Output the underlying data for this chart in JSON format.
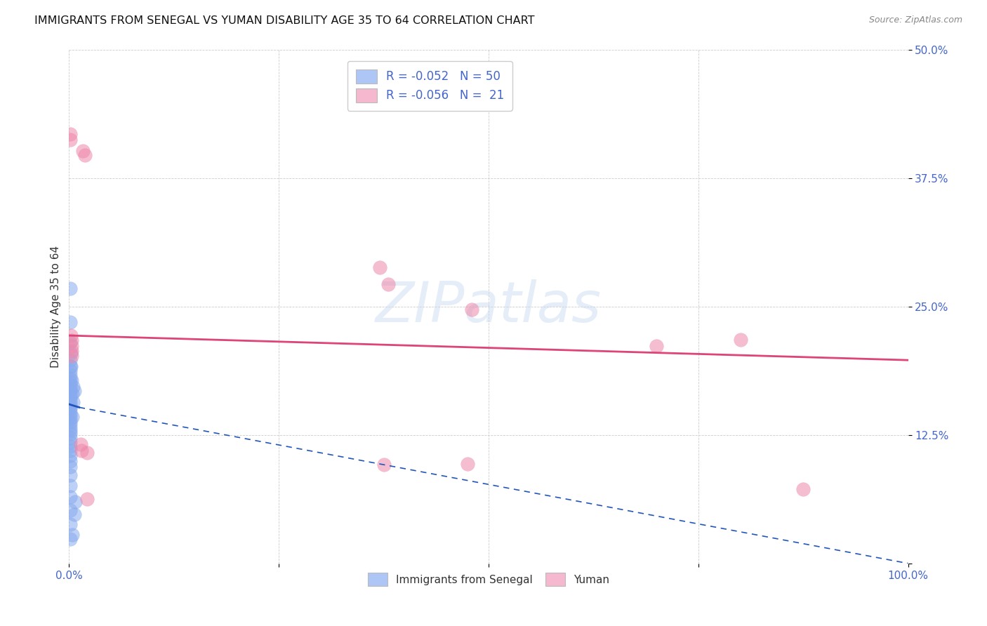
{
  "title": "IMMIGRANTS FROM SENEGAL VS YUMAN DISABILITY AGE 35 TO 64 CORRELATION CHART",
  "source": "Source: ZipAtlas.com",
  "ylabel": "Disability Age 35 to 64",
  "xlim": [
    0,
    1.0
  ],
  "ylim": [
    0,
    0.5
  ],
  "ytick_vals": [
    0.0,
    0.125,
    0.25,
    0.375,
    0.5
  ],
  "ytick_labels": [
    "",
    "12.5%",
    "25.0%",
    "37.5%",
    "50.0%"
  ],
  "xtick_vals": [
    0.0,
    0.25,
    0.5,
    0.75,
    1.0
  ],
  "xtick_labels": [
    "0.0%",
    "",
    "",
    "",
    "100.0%"
  ],
  "legend_top": [
    {
      "label": "R = -0.052   N = 50",
      "facecolor": "#aec6f5"
    },
    {
      "label": "R = -0.056   N =  21",
      "facecolor": "#f5b8ce"
    }
  ],
  "legend_bottom": [
    "Immigrants from Senegal",
    "Yuman"
  ],
  "legend_bottom_colors": [
    "#aec6f5",
    "#f5b8ce"
  ],
  "watermark": "ZIPatlas",
  "background_color": "#ffffff",
  "grid_color": "#cccccc",
  "title_fontsize": 11.5,
  "source_fontsize": 9,
  "axis_label_fontsize": 11,
  "tick_color": "#4466cc",
  "tick_fontsize": 11,
  "blue_scatter_color": "#88aaee",
  "pink_scatter_color": "#ee88aa",
  "blue_scatter": [
    [
      0.001,
      0.268
    ],
    [
      0.001,
      0.235
    ],
    [
      0.001,
      0.215
    ],
    [
      0.001,
      0.198
    ],
    [
      0.001,
      0.192
    ],
    [
      0.001,
      0.188
    ],
    [
      0.001,
      0.184
    ],
    [
      0.001,
      0.18
    ],
    [
      0.001,
      0.177
    ],
    [
      0.001,
      0.174
    ],
    [
      0.001,
      0.17
    ],
    [
      0.001,
      0.167
    ],
    [
      0.001,
      0.164
    ],
    [
      0.001,
      0.161
    ],
    [
      0.001,
      0.158
    ],
    [
      0.001,
      0.155
    ],
    [
      0.001,
      0.152
    ],
    [
      0.001,
      0.15
    ],
    [
      0.001,
      0.147
    ],
    [
      0.001,
      0.144
    ],
    [
      0.001,
      0.141
    ],
    [
      0.001,
      0.138
    ],
    [
      0.001,
      0.135
    ],
    [
      0.001,
      0.132
    ],
    [
      0.001,
      0.129
    ],
    [
      0.001,
      0.126
    ],
    [
      0.001,
      0.122
    ],
    [
      0.001,
      0.118
    ],
    [
      0.001,
      0.114
    ],
    [
      0.001,
      0.11
    ],
    [
      0.001,
      0.105
    ],
    [
      0.001,
      0.1
    ],
    [
      0.001,
      0.094
    ],
    [
      0.001,
      0.086
    ],
    [
      0.001,
      0.076
    ],
    [
      0.001,
      0.065
    ],
    [
      0.001,
      0.052
    ],
    [
      0.001,
      0.038
    ],
    [
      0.001,
      0.024
    ],
    [
      0.002,
      0.192
    ],
    [
      0.002,
      0.205
    ],
    [
      0.003,
      0.178
    ],
    [
      0.004,
      0.165
    ],
    [
      0.004,
      0.143
    ],
    [
      0.005,
      0.172
    ],
    [
      0.005,
      0.157
    ],
    [
      0.006,
      0.168
    ],
    [
      0.007,
      0.06
    ],
    [
      0.006,
      0.048
    ],
    [
      0.004,
      0.028
    ]
  ],
  "pink_scatter": [
    [
      0.001,
      0.418
    ],
    [
      0.001,
      0.413
    ],
    [
      0.016,
      0.402
    ],
    [
      0.019,
      0.398
    ],
    [
      0.002,
      0.222
    ],
    [
      0.003,
      0.217
    ],
    [
      0.003,
      0.212
    ],
    [
      0.003,
      0.207
    ],
    [
      0.003,
      0.202
    ],
    [
      0.014,
      0.116
    ],
    [
      0.015,
      0.11
    ],
    [
      0.021,
      0.108
    ],
    [
      0.38,
      0.272
    ],
    [
      0.48,
      0.247
    ],
    [
      0.7,
      0.212
    ],
    [
      0.8,
      0.218
    ],
    [
      0.37,
      0.288
    ],
    [
      0.375,
      0.096
    ],
    [
      0.475,
      0.097
    ],
    [
      0.875,
      0.072
    ],
    [
      0.021,
      0.063
    ]
  ],
  "blue_line_solid": [
    [
      0.0,
      0.155
    ],
    [
      0.012,
      0.152
    ]
  ],
  "blue_line_dashed": [
    [
      0.012,
      0.152
    ],
    [
      1.0,
      0.0
    ]
  ],
  "pink_line": [
    [
      0.0,
      0.222
    ],
    [
      1.0,
      0.198
    ]
  ],
  "blue_line_color": "#2255bb",
  "pink_line_color": "#dd4477"
}
